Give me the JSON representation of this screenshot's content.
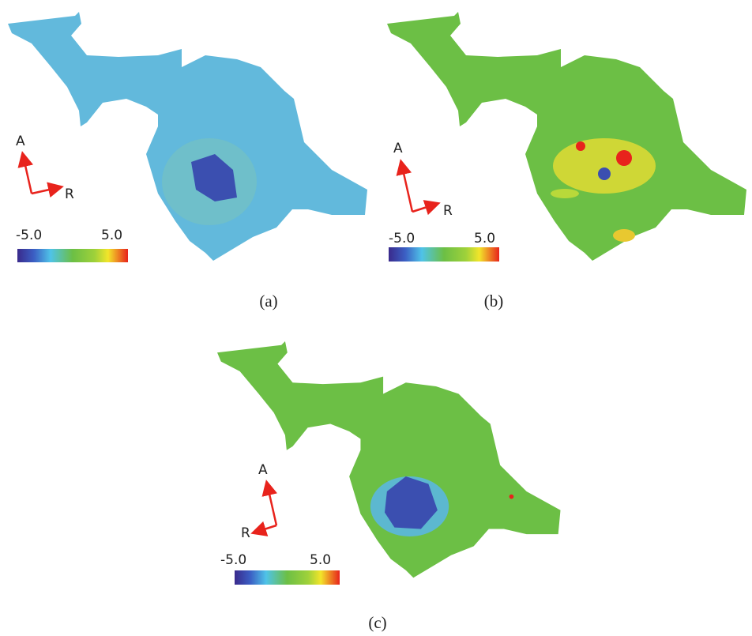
{
  "panels": [
    {
      "caption": "(a)",
      "up_label": "A",
      "side_label": "R",
      "colorbar": {
        "min_label": "-5.0",
        "max_label": "5.0"
      }
    },
    {
      "caption": "(b)",
      "up_label": "A",
      "side_label": "R",
      "colorbar": {
        "min_label": "-5.0",
        "max_label": "5.0"
      }
    },
    {
      "caption": "(c)",
      "up_label": "A",
      "side_label": "R",
      "colorbar": {
        "min_label": "-5.0",
        "max_label": "5.0"
      }
    }
  ]
}
